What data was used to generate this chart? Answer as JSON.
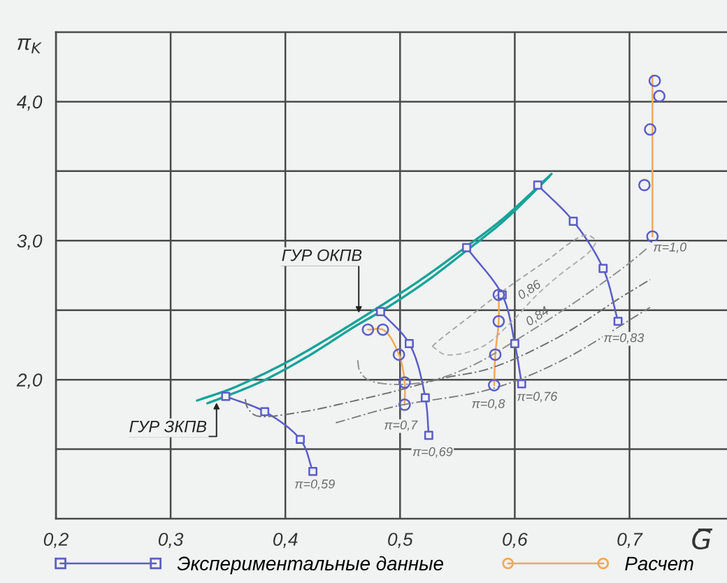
{
  "chart_data": {
    "type": "line",
    "xlabel": "G̅",
    "ylabel": "π$_{K}$",
    "xlim": [
      0.2,
      0.785
    ],
    "ylim": [
      1.0,
      4.5
    ],
    "xticks": [
      {
        "value": 0.2,
        "label": "0,2"
      },
      {
        "value": 0.3,
        "label": "0,3"
      },
      {
        "value": 0.4,
        "label": "0,4"
      },
      {
        "value": 0.5,
        "label": "0,5"
      },
      {
        "value": 0.6,
        "label": "0,6"
      },
      {
        "value": 0.7,
        "label": "0,7"
      }
    ],
    "yticks": [
      {
        "value": 1.5,
        "label": null
      },
      {
        "value": 2.0,
        "label": "2,0"
      },
      {
        "value": 2.5,
        "label": null
      },
      {
        "value": 3.0,
        "label": "3,0"
      },
      {
        "value": 3.5,
        "label": null
      },
      {
        "value": 4.0,
        "label": "4,0"
      }
    ],
    "grid": true,
    "legend": "bottom",
    "series": [
      {
        "name": "Экспериментальные данные",
        "color": "#5a5ec6",
        "marker": "square",
        "x": [
          0.348,
          0.382,
          0.413,
          0.424
        ],
        "values": [
          1.88,
          1.77,
          1.57,
          1.34
        ]
      },
      {
        "color": "#5a5ec6",
        "marker": "square",
        "x": [
          0.483,
          0.508,
          0.522,
          0.525
        ],
        "values": [
          2.49,
          2.26,
          1.87,
          1.6
        ]
      },
      {
        "color": "#5a5ec6",
        "marker": "square",
        "x": [
          0.558,
          0.589,
          0.6,
          0.606
        ],
        "values": [
          2.95,
          2.61,
          2.26,
          1.97
        ]
      },
      {
        "color": "#5a5ec6",
        "marker": "square",
        "x": [
          0.62,
          0.651,
          0.677,
          0.69
        ],
        "values": [
          3.4,
          3.14,
          2.8,
          2.42
        ]
      },
      {
        "name": "Расчет",
        "color": "#f0a85e",
        "marker": "circle",
        "colors": [
          "#5a5ec6",
          "#5a5ec6",
          "#5a5ec6",
          "#5a5ec6",
          "#5a5ec6"
        ],
        "x": [
          0.472,
          0.485,
          0.499,
          0.504,
          0.504
        ],
        "values": [
          2.36,
          2.36,
          2.18,
          1.98,
          1.82
        ]
      },
      {
        "color": "#f0a85e",
        "marker": "circle",
        "colors": [
          "#5a5ec6",
          "#5a5ec6",
          "#5a5ec6",
          "#5a5ec6"
        ],
        "x": [
          0.586,
          0.586,
          0.583,
          0.582
        ],
        "values": [
          2.61,
          2.42,
          2.18,
          1.96
        ]
      },
      {
        "color": "#f0a85e",
        "x": [
          0.72,
          0.72
        ],
        "values": [
          4.19,
          3.03
        ]
      },
      {
        "type": "scatter",
        "color": "#5a5ec6",
        "marker": "circle",
        "x": [
          0.722,
          0.726,
          0.718,
          0.713,
          0.72
        ],
        "values": [
          4.15,
          4.04,
          3.8,
          3.4,
          3.03
        ]
      },
      {
        "color": "#17a398",
        "x": [
          0.323,
          0.348,
          0.36,
          0.4,
          0.44,
          0.483,
          0.52,
          0.555,
          0.59,
          0.632
        ],
        "values": [
          1.85,
          1.92,
          1.96,
          2.12,
          2.31,
          2.53,
          2.73,
          2.94,
          3.16,
          3.48
        ]
      },
      {
        "color": "#17a398",
        "x": [
          0.332,
          0.348,
          0.38,
          0.42,
          0.46,
          0.483,
          0.52,
          0.555,
          0.59,
          0.63
        ],
        "values": [
          1.83,
          1.88,
          1.99,
          2.17,
          2.38,
          2.49,
          2.69,
          2.91,
          3.14,
          3.46
        ]
      },
      {
        "color": "#a6a6a6",
        "line_style": "dashed",
        "x": [
          0.528,
          0.535,
          0.56,
          0.59,
          0.625,
          0.662,
          0.672
        ],
        "values": [
          2.24,
          2.29,
          2.45,
          2.64,
          2.84,
          3.04,
          3.0
        ]
      },
      {
        "color": "#b0b0b0",
        "line_style": "dashed",
        "x": [
          0.528,
          0.54,
          0.57,
          0.6,
          0.618,
          0.64,
          0.665,
          0.672
        ],
        "values": [
          2.24,
          2.18,
          2.23,
          2.44,
          2.6,
          2.76,
          2.92,
          3.0
        ]
      },
      {
        "color": "#8e8e8e",
        "line_style": "dashdot",
        "x": [
          0.463,
          0.465,
          0.472,
          0.487,
          0.52,
          0.56,
          0.61,
          0.66,
          0.7,
          0.716
        ],
        "values": [
          2.14,
          2.06,
          2.0,
          1.97,
          1.98,
          2.09,
          2.33,
          2.6,
          2.84,
          2.95
        ]
      },
      {
        "color": "#6f6f6f",
        "line_style": "dashdot",
        "x": [
          0.365,
          0.367,
          0.375,
          0.416,
          0.456,
          0.497,
          0.537,
          0.578,
          0.639,
          0.694,
          0.718
        ],
        "values": [
          1.86,
          1.8,
          1.74,
          1.77,
          1.84,
          1.92,
          2.01,
          2.08,
          2.31,
          2.6,
          2.72
        ]
      },
      {
        "color": "#7d7d7d",
        "line_style": "dashdot",
        "x": [
          0.444,
          0.497,
          0.578,
          0.639,
          0.718
        ],
        "values": [
          1.69,
          1.81,
          1.93,
          2.13,
          2.52
        ]
      }
    ],
    "annotations": [
      {
        "text": "ГУР ОКПВ",
        "x": 0.464,
        "y": 2.48
      },
      {
        "text": "ГУР ЗКПВ",
        "x": 0.34,
        "y": 1.835
      },
      {
        "text": "π=0,59",
        "x": 0.424,
        "y": 1.34
      },
      {
        "text": "π=0,69",
        "x": 0.525,
        "y": 1.6
      },
      {
        "text": "π=0,7",
        "x": 0.504,
        "y": 1.82
      },
      {
        "text": "π=0,76",
        "x": 0.606,
        "y": 1.97
      },
      {
        "text": "π=0,8",
        "x": 0.582,
        "y": 1.96
      },
      {
        "text": "π=0,83",
        "x": 0.69,
        "y": 2.42
      },
      {
        "text": "π=1,0",
        "x": 0.72,
        "y": 3.03
      },
      {
        "text": "0,86",
        "x": 0.618,
        "y": 2.6
      },
      {
        "text": "0,84",
        "x": 0.625,
        "y": 2.41
      }
    ]
  }
}
